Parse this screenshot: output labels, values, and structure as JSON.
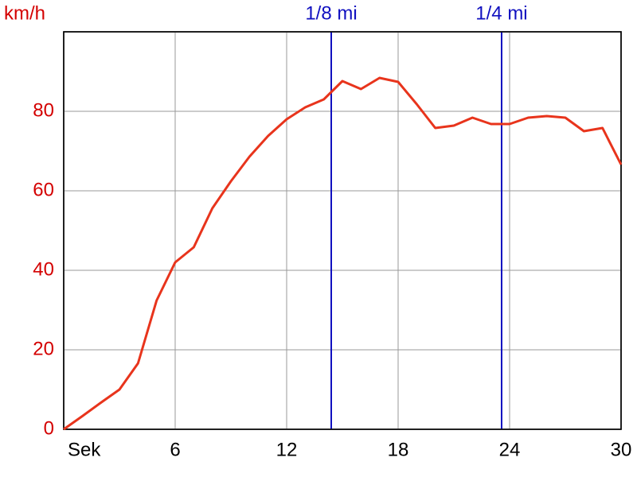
{
  "chart_data": {
    "type": "line",
    "x_label": "Sek",
    "y_label": "km/h",
    "x": [
      0,
      1,
      2,
      3,
      4,
      5,
      6,
      7,
      8,
      9,
      10,
      11,
      12,
      13,
      14,
      15,
      16,
      17,
      18,
      19,
      20,
      21,
      22,
      23,
      24,
      25,
      26,
      27,
      28,
      29,
      30
    ],
    "series": [
      {
        "name": "km/h",
        "color": "#e8341c",
        "values": [
          0,
          3.3,
          6.7,
          10,
          16.6,
          32.4,
          42,
          45.8,
          55.6,
          62.4,
          68.6,
          73.8,
          78,
          81,
          83,
          87.6,
          85.6,
          88.4,
          87.4,
          81.8,
          75.8,
          76.4,
          78.4,
          76.8,
          76.8,
          78.4,
          78.8,
          78.4,
          75,
          75.8,
          66.6
        ]
      }
    ],
    "xlim": [
      0,
      30
    ],
    "xticks": [
      6,
      12,
      18,
      24,
      30
    ],
    "ylim": [
      0,
      100
    ],
    "yticks": [
      0,
      20,
      40,
      60,
      80
    ],
    "grid": true,
    "y_tick_color": "#d40000",
    "marker_color": "#1010c0",
    "markers": [
      {
        "label": "1/8 mi",
        "x": 14.4
      },
      {
        "label": "1/4 mi",
        "x": 23.57
      }
    ]
  }
}
